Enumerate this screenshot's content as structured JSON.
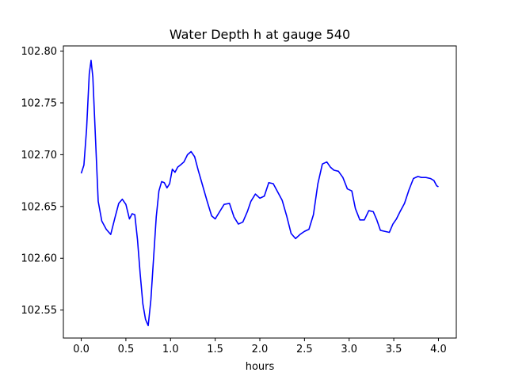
{
  "chart_data": {
    "type": "line",
    "title": "Water Depth h at gauge 540",
    "xlabel": "hours",
    "ylabel": "",
    "xlim": [
      -0.2,
      4.2
    ],
    "ylim": [
      102.523,
      102.805
    ],
    "grid": false,
    "x_ticks": [
      0.0,
      0.5,
      1.0,
      1.5,
      2.0,
      2.5,
      3.0,
      3.5,
      4.0
    ],
    "x_tick_labels": [
      "0.0",
      "0.5",
      "1.0",
      "1.5",
      "2.0",
      "2.5",
      "3.0",
      "3.5",
      "4.0"
    ],
    "y_ticks": [
      102.55,
      102.6,
      102.65,
      102.7,
      102.75,
      102.8
    ],
    "y_tick_labels": [
      "102.55",
      "102.60",
      "102.65",
      "102.70",
      "102.75",
      "102.80"
    ],
    "series": [
      {
        "color": "#0000ff",
        "x": [
          0.0,
          0.03,
          0.06,
          0.09,
          0.11,
          0.13,
          0.16,
          0.19,
          0.23,
          0.28,
          0.33,
          0.38,
          0.42,
          0.46,
          0.5,
          0.54,
          0.57,
          0.6,
          0.63,
          0.66,
          0.69,
          0.72,
          0.75,
          0.78,
          0.81,
          0.84,
          0.87,
          0.9,
          0.93,
          0.96,
          0.99,
          1.02,
          1.05,
          1.08,
          1.11,
          1.15,
          1.19,
          1.23,
          1.27,
          1.31,
          1.36,
          1.41,
          1.46,
          1.5,
          1.55,
          1.6,
          1.66,
          1.71,
          1.76,
          1.81,
          1.86,
          1.9,
          1.95,
          2.0,
          2.05,
          2.1,
          2.15,
          2.2,
          2.25,
          2.3,
          2.35,
          2.4,
          2.45,
          2.5,
          2.55,
          2.6,
          2.65,
          2.7,
          2.75,
          2.79,
          2.83,
          2.88,
          2.93,
          2.98,
          3.03,
          3.07,
          3.12,
          3.17,
          3.22,
          3.27,
          3.31,
          3.35,
          3.4,
          3.45,
          3.49,
          3.53,
          3.57,
          3.62,
          3.67,
          3.72,
          3.77,
          3.81,
          3.86,
          3.91,
          3.95,
          3.98,
          4.0
        ],
        "y": [
          102.682,
          102.69,
          102.725,
          102.778,
          102.791,
          102.775,
          102.715,
          102.655,
          102.636,
          102.628,
          102.623,
          102.64,
          102.653,
          102.657,
          102.652,
          102.638,
          102.643,
          102.642,
          102.618,
          102.585,
          102.556,
          102.541,
          102.535,
          102.56,
          102.6,
          102.64,
          102.665,
          102.674,
          102.673,
          102.668,
          102.672,
          102.686,
          102.683,
          102.688,
          102.69,
          102.693,
          102.7,
          102.703,
          102.698,
          102.685,
          102.67,
          102.655,
          102.641,
          102.638,
          102.645,
          102.652,
          102.653,
          102.64,
          102.633,
          102.635,
          102.645,
          102.655,
          102.662,
          102.658,
          102.66,
          102.673,
          102.672,
          102.664,
          102.656,
          102.641,
          102.624,
          102.619,
          102.623,
          102.626,
          102.628,
          102.642,
          102.672,
          102.691,
          102.693,
          102.688,
          102.685,
          102.684,
          102.678,
          102.667,
          102.665,
          102.648,
          102.637,
          102.637,
          102.646,
          102.645,
          102.637,
          102.627,
          102.626,
          102.625,
          102.633,
          102.638,
          102.645,
          102.653,
          102.666,
          102.677,
          102.679,
          102.678,
          102.678,
          102.677,
          102.675,
          102.67,
          102.669
        ]
      }
    ]
  }
}
